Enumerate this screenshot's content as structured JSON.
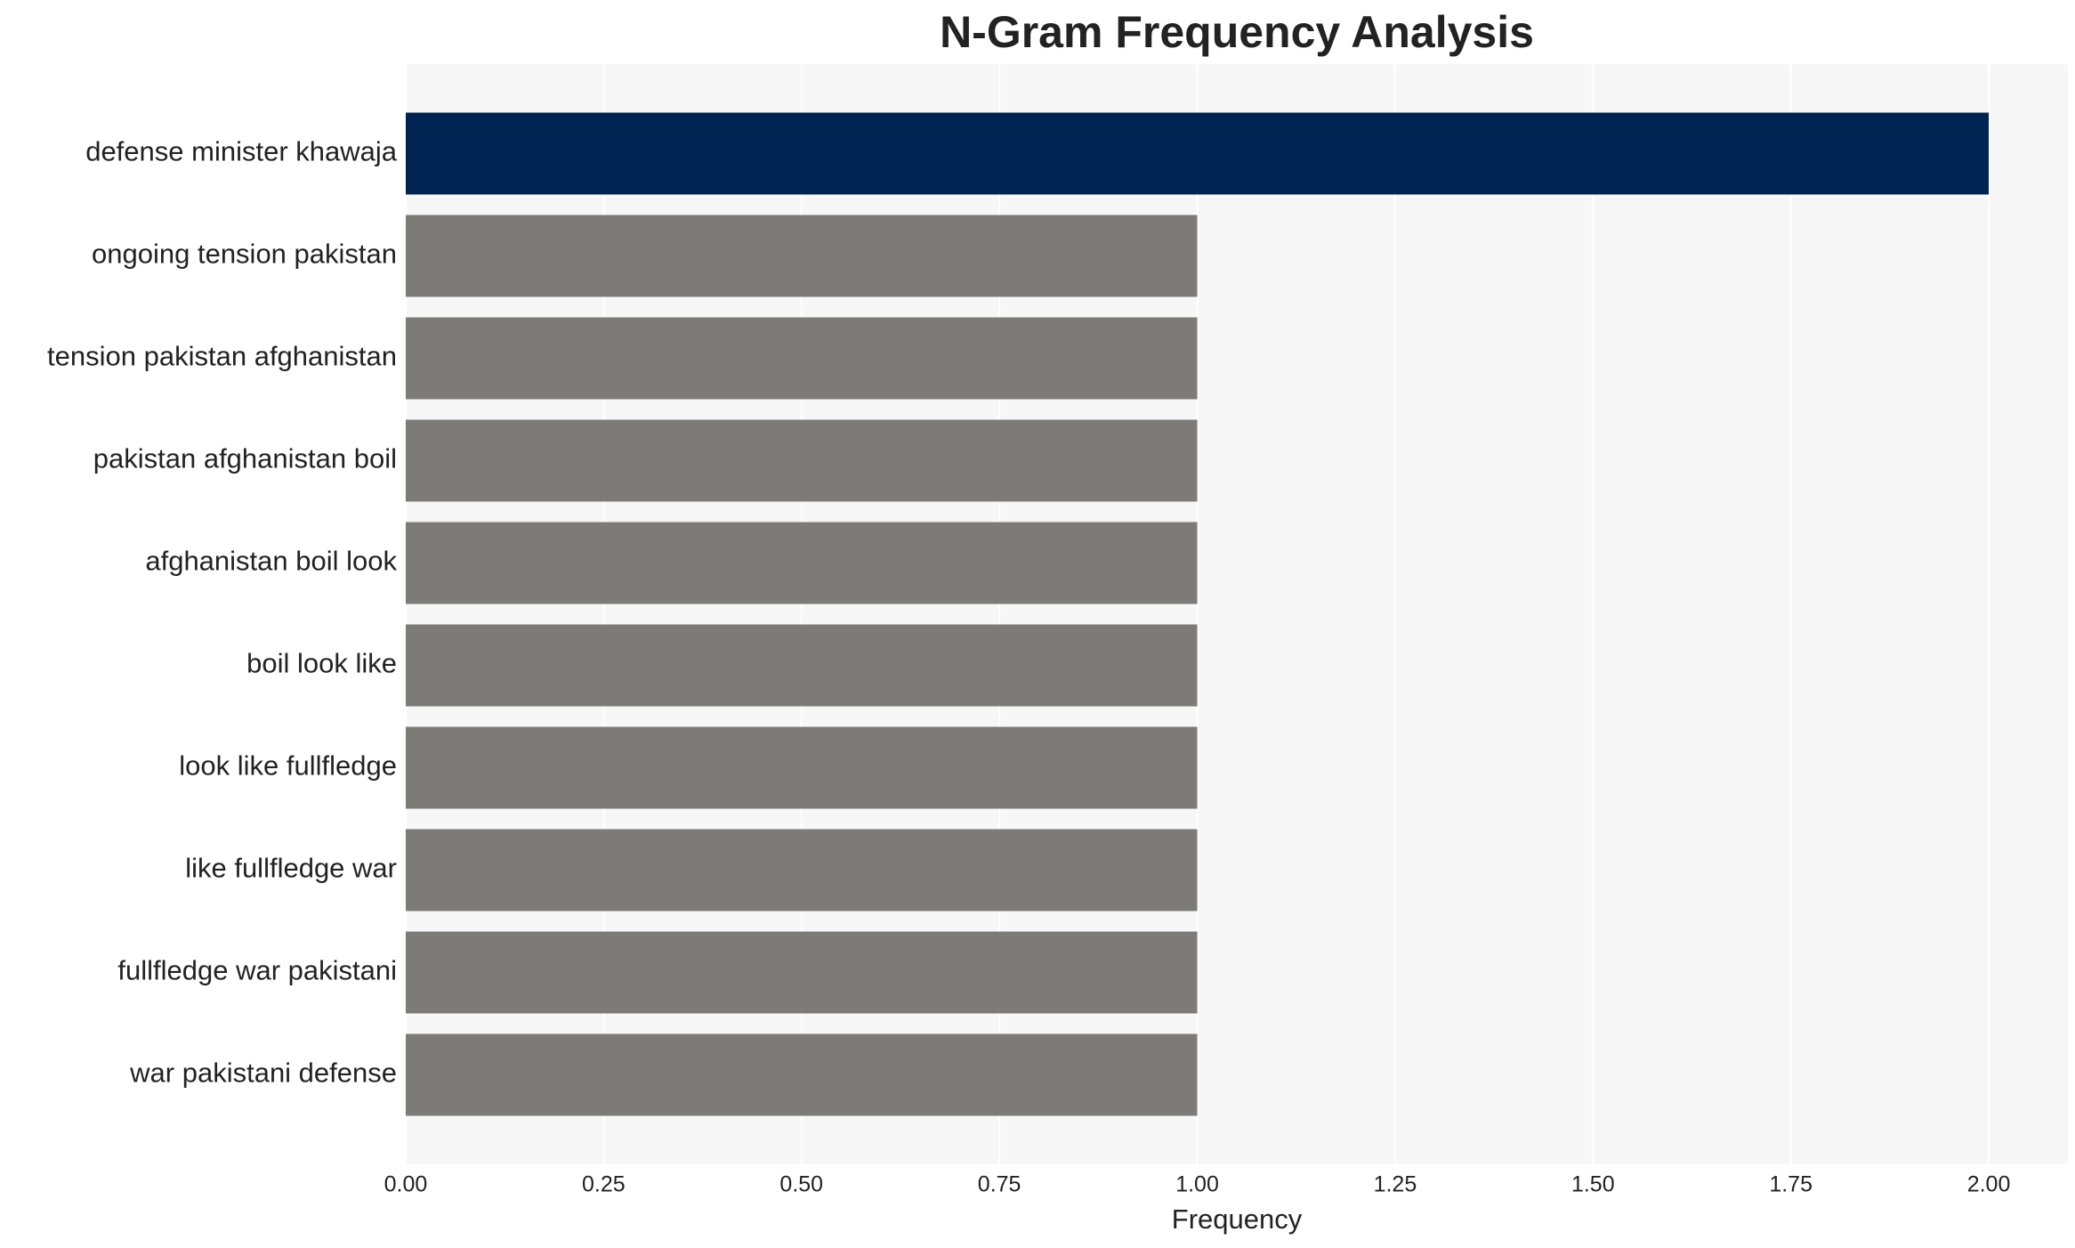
{
  "chart_data": {
    "type": "bar",
    "orientation": "horizontal",
    "title": "N-Gram Frequency Analysis",
    "x_label": "Frequency",
    "categories": [
      "defense minister khawaja",
      "ongoing tension pakistan",
      "tension pakistan afghanistan",
      "pakistan afghanistan boil",
      "afghanistan boil look",
      "boil look like",
      "look like fullfledge",
      "like fullfledge war",
      "fullfledge war pakistani",
      "war pakistani defense"
    ],
    "values": [
      2,
      1,
      1,
      1,
      1,
      1,
      1,
      1,
      1,
      1
    ],
    "colors": [
      "#002451",
      "#7c7b77",
      "#7c7b77",
      "#7c7b77",
      "#7c7b77",
      "#7c7b77",
      "#7c7b77",
      "#7c7b77",
      "#7c7b77",
      "#7c7b77"
    ],
    "xlim": [
      0,
      2.1
    ],
    "xticks": [
      {
        "value": 0,
        "label": "0.00"
      },
      {
        "value": 0.25,
        "label": "0.25"
      },
      {
        "value": 0.5,
        "label": "0.50"
      },
      {
        "value": 0.75,
        "label": "0.75"
      },
      {
        "value": 1,
        "label": "1.00"
      },
      {
        "value": 1.25,
        "label": "1.25"
      },
      {
        "value": 1.5,
        "label": "1.50"
      },
      {
        "value": 1.75,
        "label": "1.75"
      },
      {
        "value": 2,
        "label": "2.00"
      }
    ],
    "grid": true
  }
}
